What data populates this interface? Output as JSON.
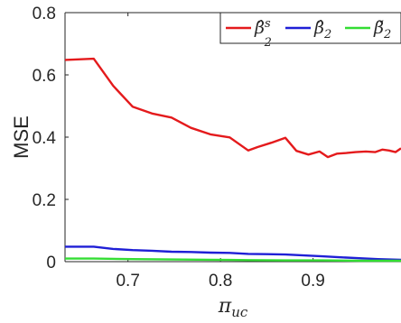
{
  "chart_data": {
    "type": "line",
    "ylabel": "MSE",
    "xlabel": "π",
    "xlabel_sub": "uc",
    "xlim": [
      0.632,
      0.995
    ],
    "ylim": [
      0,
      0.8
    ],
    "xticks": [
      0.7,
      0.8,
      0.9
    ],
    "yticks": [
      0,
      0.2,
      0.4,
      0.6,
      0.8
    ],
    "xtick_labels": [
      "0.7",
      "0.8",
      "0.9"
    ],
    "ytick_labels": [
      "0",
      "0.2",
      "0.4",
      "0.6",
      "0.8"
    ],
    "legend_position": "top-right",
    "series": [
      {
        "name": "β̂",
        "legend_sub": "2",
        "legend_sup": "s",
        "color": "#e41a1c",
        "x": [
          0.632,
          0.663,
          0.684,
          0.705,
          0.726,
          0.747,
          0.768,
          0.789,
          0.81,
          0.83,
          0.84,
          0.855,
          0.87,
          0.882,
          0.895,
          0.907,
          0.916,
          0.926,
          0.936,
          0.946,
          0.957,
          0.967,
          0.975,
          0.982,
          0.989,
          0.995
        ],
        "y": [
          0.648,
          0.652,
          0.565,
          0.498,
          0.476,
          0.463,
          0.43,
          0.409,
          0.399,
          0.357,
          0.368,
          0.382,
          0.398,
          0.356,
          0.344,
          0.354,
          0.336,
          0.347,
          0.349,
          0.352,
          0.354,
          0.352,
          0.36,
          0.357,
          0.352,
          0.364
        ]
      },
      {
        "name": "β̂",
        "legend_sub": "2",
        "legend_sup": "",
        "color": "#1f1fd6",
        "x": [
          0.632,
          0.663,
          0.684,
          0.705,
          0.726,
          0.747,
          0.768,
          0.789,
          0.81,
          0.83,
          0.85,
          0.87,
          0.89,
          0.91,
          0.93,
          0.95,
          0.97,
          0.995
        ],
        "y": [
          0.048,
          0.048,
          0.041,
          0.037,
          0.035,
          0.032,
          0.031,
          0.029,
          0.028,
          0.025,
          0.024,
          0.023,
          0.02,
          0.017,
          0.014,
          0.011,
          0.008,
          0.006
        ]
      },
      {
        "name": "β̃",
        "legend_sub": "2",
        "legend_sup": "",
        "color": "#33dd33",
        "x": [
          0.632,
          0.663,
          0.705,
          0.747,
          0.789,
          0.83,
          0.87,
          0.91,
          0.95,
          0.995
        ],
        "y": [
          0.01,
          0.01,
          0.008,
          0.007,
          0.006,
          0.005,
          0.004,
          0.004,
          0.003,
          0.003
        ]
      }
    ]
  }
}
